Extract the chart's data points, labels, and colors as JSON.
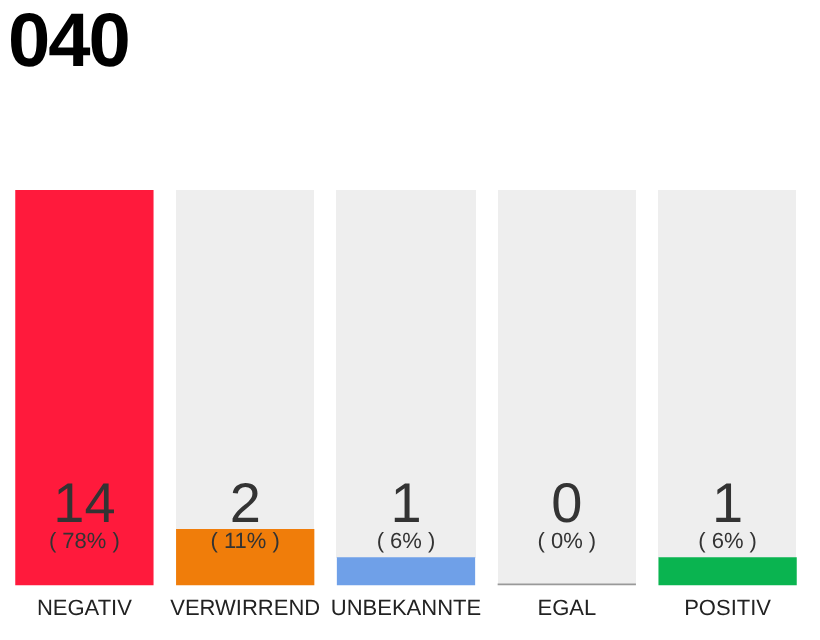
{
  "chart_data": {
    "type": "bar",
    "title": "040",
    "categories": [
      "NEGATIV",
      "VERWIRREND",
      "UNBEKANNTE",
      "EGAL",
      "POSITIV"
    ],
    "values": [
      14,
      2,
      1,
      0,
      1
    ],
    "colors": [
      "#ff1a3c",
      "#f07d0a",
      "#6fa0e8",
      "#999999",
      "#0ab450"
    ],
    "value_labels": [
      "14\n( 78% )",
      "2\n( 11% )",
      "1\n( 6% )",
      "0\n( 0% )",
      "1\n( 6% )"
    ],
    "grid": false,
    "legend": false
  }
}
